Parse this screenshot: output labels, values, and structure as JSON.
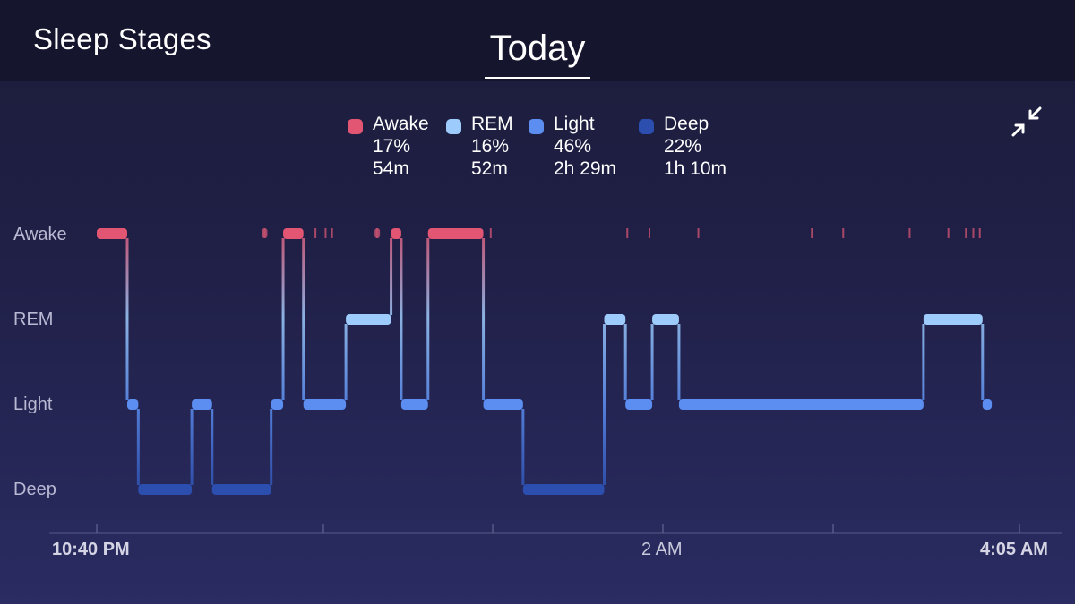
{
  "header": {
    "title": "Sleep Stages",
    "tab": "Today"
  },
  "legend": [
    {
      "name": "Awake",
      "percent": "17%",
      "duration": "54m",
      "color": "#e25674"
    },
    {
      "name": "REM",
      "percent": "16%",
      "duration": "52m",
      "color": "#9dcbfb"
    },
    {
      "name": "Light",
      "percent": "46%",
      "duration": "2h 29m",
      "color": "#5b8ef0"
    },
    {
      "name": "Deep",
      "percent": "22%",
      "duration": "1h 10m",
      "color": "#2b4eaf"
    }
  ],
  "controls": {
    "collapse_icon": "collapse-arrows-icon"
  },
  "chart_data": {
    "type": "step",
    "y_categories": [
      "Awake",
      "REM",
      "Light",
      "Deep"
    ],
    "x_axis": {
      "start": "10:40 PM",
      "mid": "2 AM",
      "end": "4:05 AM",
      "start_minutes": 0,
      "end_minutes": 325
    },
    "segments": [
      {
        "stage": "Awake",
        "start": 0.0,
        "end": 3.3
      },
      {
        "stage": "Light",
        "start": 3.3,
        "end": 4.5
      },
      {
        "stage": "Deep",
        "start": 4.5,
        "end": 10.3
      },
      {
        "stage": "Light",
        "start": 10.3,
        "end": 12.5
      },
      {
        "stage": "Deep",
        "start": 12.5,
        "end": 18.9
      },
      {
        "stage": "Light",
        "start": 18.9,
        "end": 20.2
      },
      {
        "stage": "Awake",
        "start": 20.2,
        "end": 22.4
      },
      {
        "stage": "Light",
        "start": 22.4,
        "end": 27.0
      },
      {
        "stage": "REM",
        "start": 27.0,
        "end": 31.9
      },
      {
        "stage": "Awake",
        "start": 31.9,
        "end": 33.0
      },
      {
        "stage": "Light",
        "start": 33.0,
        "end": 35.9
      },
      {
        "stage": "Awake",
        "start": 35.9,
        "end": 41.9
      },
      {
        "stage": "Light",
        "start": 41.9,
        "end": 46.2
      },
      {
        "stage": "Deep",
        "start": 46.2,
        "end": 55.0
      },
      {
        "stage": "REM",
        "start": 55.0,
        "end": 57.3
      },
      {
        "stage": "Light",
        "start": 57.3,
        "end": 60.2
      },
      {
        "stage": "REM",
        "start": 60.2,
        "end": 63.1
      },
      {
        "stage": "Light",
        "start": 63.1,
        "end": 89.6
      },
      {
        "stage": "REM",
        "start": 89.6,
        "end": 96.0
      },
      {
        "stage": "Light",
        "start": 96.0,
        "end": 97.0
      }
    ],
    "awake_ticks": [
      18.2,
      23.7,
      24.8,
      25.5,
      30.4,
      42.7,
      57.5,
      59.9,
      65.2,
      77.5,
      80.9,
      88.1,
      92.3,
      94.2,
      95.0,
      95.7
    ],
    "awake_dots": [
      18.2,
      30.4
    ]
  }
}
